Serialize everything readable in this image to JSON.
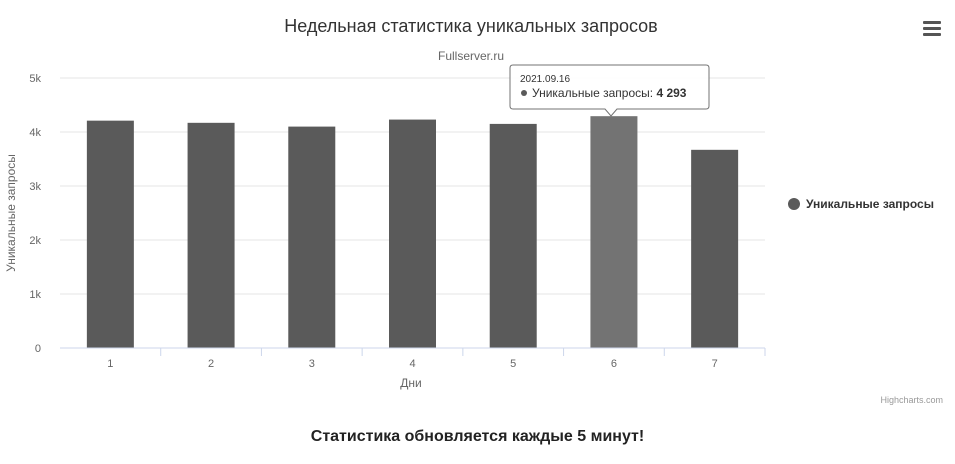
{
  "chart_data": {
    "type": "bar",
    "title": "Недельная статистика уникальных запросов",
    "subtitle": "Fullserver.ru",
    "xlabel": "Дни",
    "ylabel": "Уникальные запросы",
    "categories": [
      "1",
      "2",
      "3",
      "4",
      "5",
      "6",
      "7"
    ],
    "series": [
      {
        "name": "Уникальные запросы",
        "values": [
          4210,
          4170,
          4100,
          4230,
          4150,
          4293,
          3670
        ],
        "color": "#5a5a5a"
      }
    ],
    "highlight_color": "#737373",
    "ylim": [
      0,
      5000
    ],
    "yticks": [
      0,
      1000,
      2000,
      3000,
      4000,
      5000
    ],
    "ytick_labels": [
      "0",
      "1k",
      "2k",
      "3k",
      "4k",
      "5k"
    ],
    "grid": true,
    "legend": "right",
    "tooltip": {
      "index": 5,
      "date": "2021.09.16",
      "label": "Уникальные запросы:",
      "value": "4 293"
    },
    "credits": "Highcharts.com"
  },
  "footer": "Статистика обновляется каждые 5 минут!",
  "menu_icon": "hamburger-menu-icon"
}
